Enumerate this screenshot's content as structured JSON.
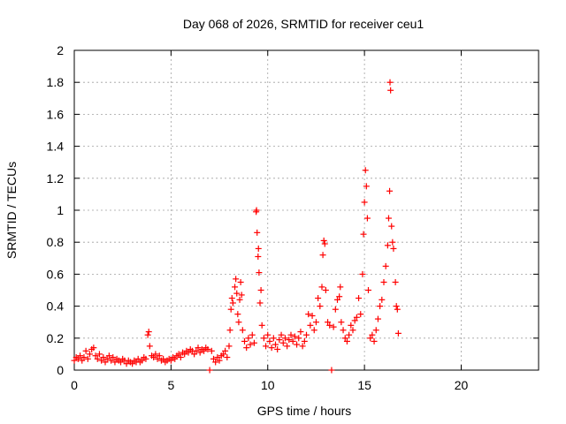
{
  "chart_data": {
    "type": "scatter",
    "title": "Day 068 of 2026, SRMTID for receiver ceu1",
    "xlabel": "GPS time / hours",
    "ylabel": "SRMTID / TECUs",
    "xlim": [
      0,
      24
    ],
    "ylim": [
      0,
      2
    ],
    "x_ticks": [
      0,
      5,
      10,
      15,
      20
    ],
    "y_ticks": [
      0,
      0.2,
      0.4,
      0.6,
      0.8,
      1,
      1.2,
      1.4,
      1.6,
      1.8,
      2
    ],
    "x_tick_labels": [
      "0",
      "5",
      "10",
      "15",
      "20"
    ],
    "y_tick_labels": [
      "0",
      "0.2",
      "0.4",
      "0.6",
      "0.8",
      "1",
      "1.2",
      "1.4",
      "1.6",
      "1.8",
      "2"
    ],
    "grid": true,
    "marker": "+",
    "series": [
      {
        "color": "#ff0000",
        "points": [
          [
            0.0,
            0.06
          ],
          [
            0.1,
            0.08
          ],
          [
            0.2,
            0.07
          ],
          [
            0.3,
            0.09
          ],
          [
            0.4,
            0.06
          ],
          [
            0.5,
            0.08
          ],
          [
            0.6,
            0.12
          ],
          [
            0.7,
            0.07
          ],
          [
            0.8,
            0.1
          ],
          [
            0.9,
            0.13
          ],
          [
            1.0,
            0.14
          ],
          [
            1.1,
            0.09
          ],
          [
            1.2,
            0.07
          ],
          [
            1.3,
            0.1
          ],
          [
            1.4,
            0.06
          ],
          [
            1.5,
            0.08
          ],
          [
            1.6,
            0.05
          ],
          [
            1.7,
            0.07
          ],
          [
            1.8,
            0.09
          ],
          [
            1.9,
            0.06
          ],
          [
            2.0,
            0.08
          ],
          [
            2.1,
            0.05
          ],
          [
            2.2,
            0.07
          ],
          [
            2.3,
            0.06
          ],
          [
            2.4,
            0.05
          ],
          [
            2.5,
            0.07
          ],
          [
            2.6,
            0.06
          ],
          [
            2.7,
            0.04
          ],
          [
            2.8,
            0.06
          ],
          [
            2.9,
            0.05
          ],
          [
            3.0,
            0.04
          ],
          [
            3.1,
            0.06
          ],
          [
            3.2,
            0.05
          ],
          [
            3.3,
            0.07
          ],
          [
            3.4,
            0.05
          ],
          [
            3.5,
            0.06
          ],
          [
            3.6,
            0.08
          ],
          [
            3.7,
            0.07
          ],
          [
            3.8,
            0.22
          ],
          [
            3.85,
            0.24
          ],
          [
            3.9,
            0.15
          ],
          [
            4.0,
            0.09
          ],
          [
            4.1,
            0.08
          ],
          [
            4.2,
            0.1
          ],
          [
            4.3,
            0.07
          ],
          [
            4.4,
            0.09
          ],
          [
            4.5,
            0.06
          ],
          [
            4.6,
            0.07
          ],
          [
            4.7,
            0.05
          ],
          [
            4.8,
            0.06
          ],
          [
            4.9,
            0.07
          ],
          [
            5.0,
            0.06
          ],
          [
            5.1,
            0.08
          ],
          [
            5.2,
            0.07
          ],
          [
            5.3,
            0.09
          ],
          [
            5.4,
            0.1
          ],
          [
            5.5,
            0.08
          ],
          [
            5.6,
            0.11
          ],
          [
            5.7,
            0.1
          ],
          [
            5.8,
            0.12
          ],
          [
            5.9,
            0.11
          ],
          [
            6.0,
            0.13
          ],
          [
            6.1,
            0.12
          ],
          [
            6.2,
            0.1
          ],
          [
            6.3,
            0.12
          ],
          [
            6.4,
            0.14
          ],
          [
            6.5,
            0.11
          ],
          [
            6.6,
            0.13
          ],
          [
            6.7,
            0.12
          ],
          [
            6.8,
            0.14
          ],
          [
            6.9,
            0.13
          ],
          [
            7.0,
            0.0
          ],
          [
            7.1,
            0.12
          ],
          [
            7.2,
            0.07
          ],
          [
            7.3,
            0.05
          ],
          [
            7.4,
            0.08
          ],
          [
            7.5,
            0.06
          ],
          [
            7.6,
            0.09
          ],
          [
            7.7,
            0.1
          ],
          [
            7.8,
            0.12
          ],
          [
            7.9,
            0.08
          ],
          [
            8.0,
            0.15
          ],
          [
            8.05,
            0.25
          ],
          [
            8.1,
            0.38
          ],
          [
            8.15,
            0.45
          ],
          [
            8.2,
            0.42
          ],
          [
            8.3,
            0.52
          ],
          [
            8.35,
            0.57
          ],
          [
            8.4,
            0.48
          ],
          [
            8.45,
            0.35
          ],
          [
            8.5,
            0.3
          ],
          [
            8.55,
            0.44
          ],
          [
            8.6,
            0.55
          ],
          [
            8.65,
            0.47
          ],
          [
            8.7,
            0.25
          ],
          [
            8.8,
            0.18
          ],
          [
            8.9,
            0.14
          ],
          [
            9.0,
            0.2
          ],
          [
            9.1,
            0.16
          ],
          [
            9.2,
            0.22
          ],
          [
            9.3,
            0.17
          ],
          [
            9.4,
            0.99
          ],
          [
            9.42,
            1.0
          ],
          [
            9.45,
            0.86
          ],
          [
            9.5,
            0.71
          ],
          [
            9.52,
            0.76
          ],
          [
            9.55,
            0.61
          ],
          [
            9.6,
            0.42
          ],
          [
            9.65,
            0.5
          ],
          [
            9.7,
            0.28
          ],
          [
            9.8,
            0.2
          ],
          [
            9.9,
            0.15
          ],
          [
            10.0,
            0.22
          ],
          [
            10.1,
            0.18
          ],
          [
            10.2,
            0.14
          ],
          [
            10.3,
            0.2
          ],
          [
            10.4,
            0.16
          ],
          [
            10.5,
            0.13
          ],
          [
            10.6,
            0.19
          ],
          [
            10.7,
            0.22
          ],
          [
            10.8,
            0.17
          ],
          [
            10.9,
            0.2
          ],
          [
            11.0,
            0.15
          ],
          [
            11.1,
            0.19
          ],
          [
            11.2,
            0.22
          ],
          [
            11.3,
            0.18
          ],
          [
            11.4,
            0.21
          ],
          [
            11.5,
            0.16
          ],
          [
            11.6,
            0.2
          ],
          [
            11.7,
            0.24
          ],
          [
            11.8,
            0.15
          ],
          [
            11.9,
            0.18
          ],
          [
            12.0,
            0.22
          ],
          [
            12.1,
            0.35
          ],
          [
            12.2,
            0.28
          ],
          [
            12.3,
            0.34
          ],
          [
            12.4,
            0.25
          ],
          [
            12.5,
            0.3
          ],
          [
            12.6,
            0.45
          ],
          [
            12.7,
            0.4
          ],
          [
            12.8,
            0.52
          ],
          [
            12.85,
            0.72
          ],
          [
            12.9,
            0.81
          ],
          [
            12.95,
            0.79
          ],
          [
            13.0,
            0.5
          ],
          [
            13.1,
            0.3
          ],
          [
            13.2,
            0.28
          ],
          [
            13.3,
            0.0
          ],
          [
            13.4,
            0.27
          ],
          [
            13.5,
            0.38
          ],
          [
            13.6,
            0.44
          ],
          [
            13.7,
            0.46
          ],
          [
            13.75,
            0.52
          ],
          [
            13.8,
            0.3
          ],
          [
            13.9,
            0.25
          ],
          [
            14.0,
            0.2
          ],
          [
            14.1,
            0.18
          ],
          [
            14.2,
            0.22
          ],
          [
            14.3,
            0.28
          ],
          [
            14.4,
            0.25
          ],
          [
            14.5,
            0.31
          ],
          [
            14.6,
            0.33
          ],
          [
            14.7,
            0.45
          ],
          [
            14.8,
            0.35
          ],
          [
            14.9,
            0.6
          ],
          [
            14.95,
            0.85
          ],
          [
            15.0,
            1.05
          ],
          [
            15.05,
            1.25
          ],
          [
            15.1,
            1.15
          ],
          [
            15.15,
            0.95
          ],
          [
            15.2,
            0.5
          ],
          [
            15.3,
            0.2
          ],
          [
            15.4,
            0.22
          ],
          [
            15.5,
            0.18
          ],
          [
            15.6,
            0.25
          ],
          [
            15.7,
            0.32
          ],
          [
            15.8,
            0.4
          ],
          [
            15.9,
            0.44
          ],
          [
            16.0,
            0.55
          ],
          [
            16.1,
            0.65
          ],
          [
            16.2,
            0.78
          ],
          [
            16.25,
            0.95
          ],
          [
            16.3,
            1.12
          ],
          [
            16.32,
            1.8
          ],
          [
            16.35,
            1.75
          ],
          [
            16.4,
            0.9
          ],
          [
            16.45,
            0.8
          ],
          [
            16.5,
            0.76
          ],
          [
            16.6,
            0.55
          ],
          [
            16.65,
            0.4
          ],
          [
            16.7,
            0.38
          ],
          [
            16.75,
            0.23
          ]
        ]
      }
    ]
  }
}
